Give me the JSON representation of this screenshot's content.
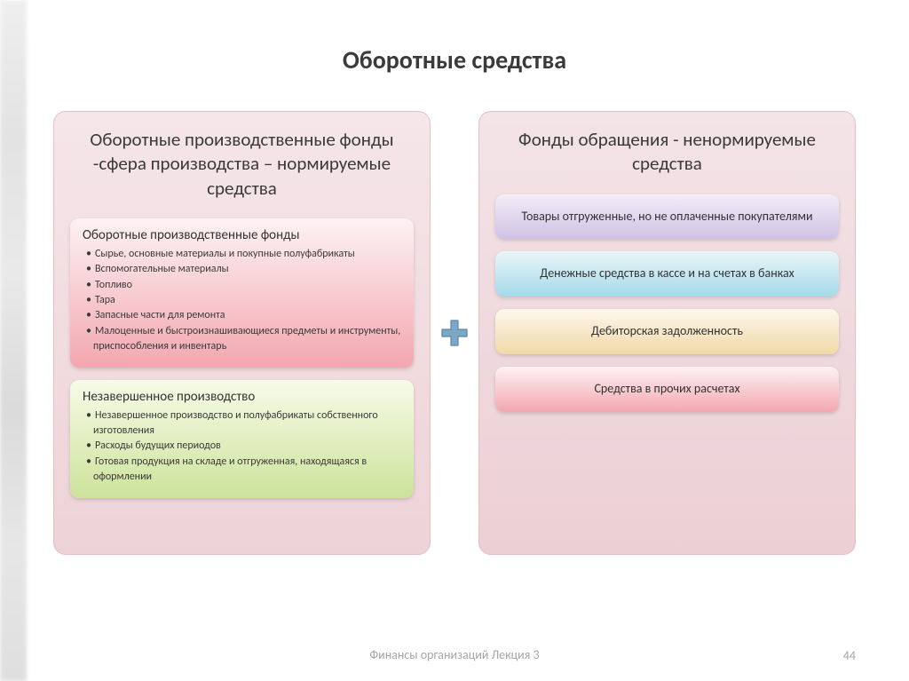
{
  "title": "Оборотные средства",
  "left_panel": {
    "title": "Оборотные производственные фонды -сфера производства – нормируемые средства",
    "bg_gradient": [
      "#f5e6e9",
      "#edd3d8"
    ],
    "box1": {
      "title": "Оборотные производственные фонды",
      "gradient": [
        "#fdf2f3",
        "#f3a7b0"
      ],
      "items": [
        "Сырье, основные материалы и покупные полуфабрикаты",
        "Вспомогательные материалы",
        "Топливо",
        "Тара",
        "Запасные части для ремонта",
        "Малоценные и быстроизнашивающиеся предметы и инструменты, приспособления и инвентарь"
      ]
    },
    "box2": {
      "title": "Незавершенное производство",
      "gradient": [
        "#f7fbe8",
        "#cde39b"
      ],
      "items": [
        "Незавершенное производство и полуфабрикаты собственного изготовления",
        "Расходы будущих периодов",
        "Готовая продукция на складе и отгруженная, находящаяся в оформлении"
      ]
    }
  },
  "right_panel": {
    "title": "Фонды обращения - ненормируемые средства",
    "bg_gradient": [
      "#f3e4e7",
      "#eccfd5"
    ],
    "items": [
      {
        "text": "Товары отгруженные, но не оплаченные покупателями",
        "gradient": [
          "#f2eef8",
          "#cfc1e4"
        ]
      },
      {
        "text": "Денежные средства в кассе и на счетах в банках",
        "gradient": [
          "#eaf6fa",
          "#a5d9e8"
        ]
      },
      {
        "text": "Дебиторская задолженность",
        "gradient": [
          "#fdf7ec",
          "#f0d9a8"
        ]
      },
      {
        "text": "Средства в прочих расчетах",
        "gradient": [
          "#fdf2f3",
          "#f3a7b0"
        ]
      }
    ]
  },
  "plus": {
    "fill": "#7da7c7",
    "stroke": "#5a86a8"
  },
  "footer": "Финансы организаций Лекция 3",
  "page": "44",
  "colors": {
    "title": "#3a3a3a",
    "text": "#333333",
    "footer": "#a6a6a6"
  }
}
